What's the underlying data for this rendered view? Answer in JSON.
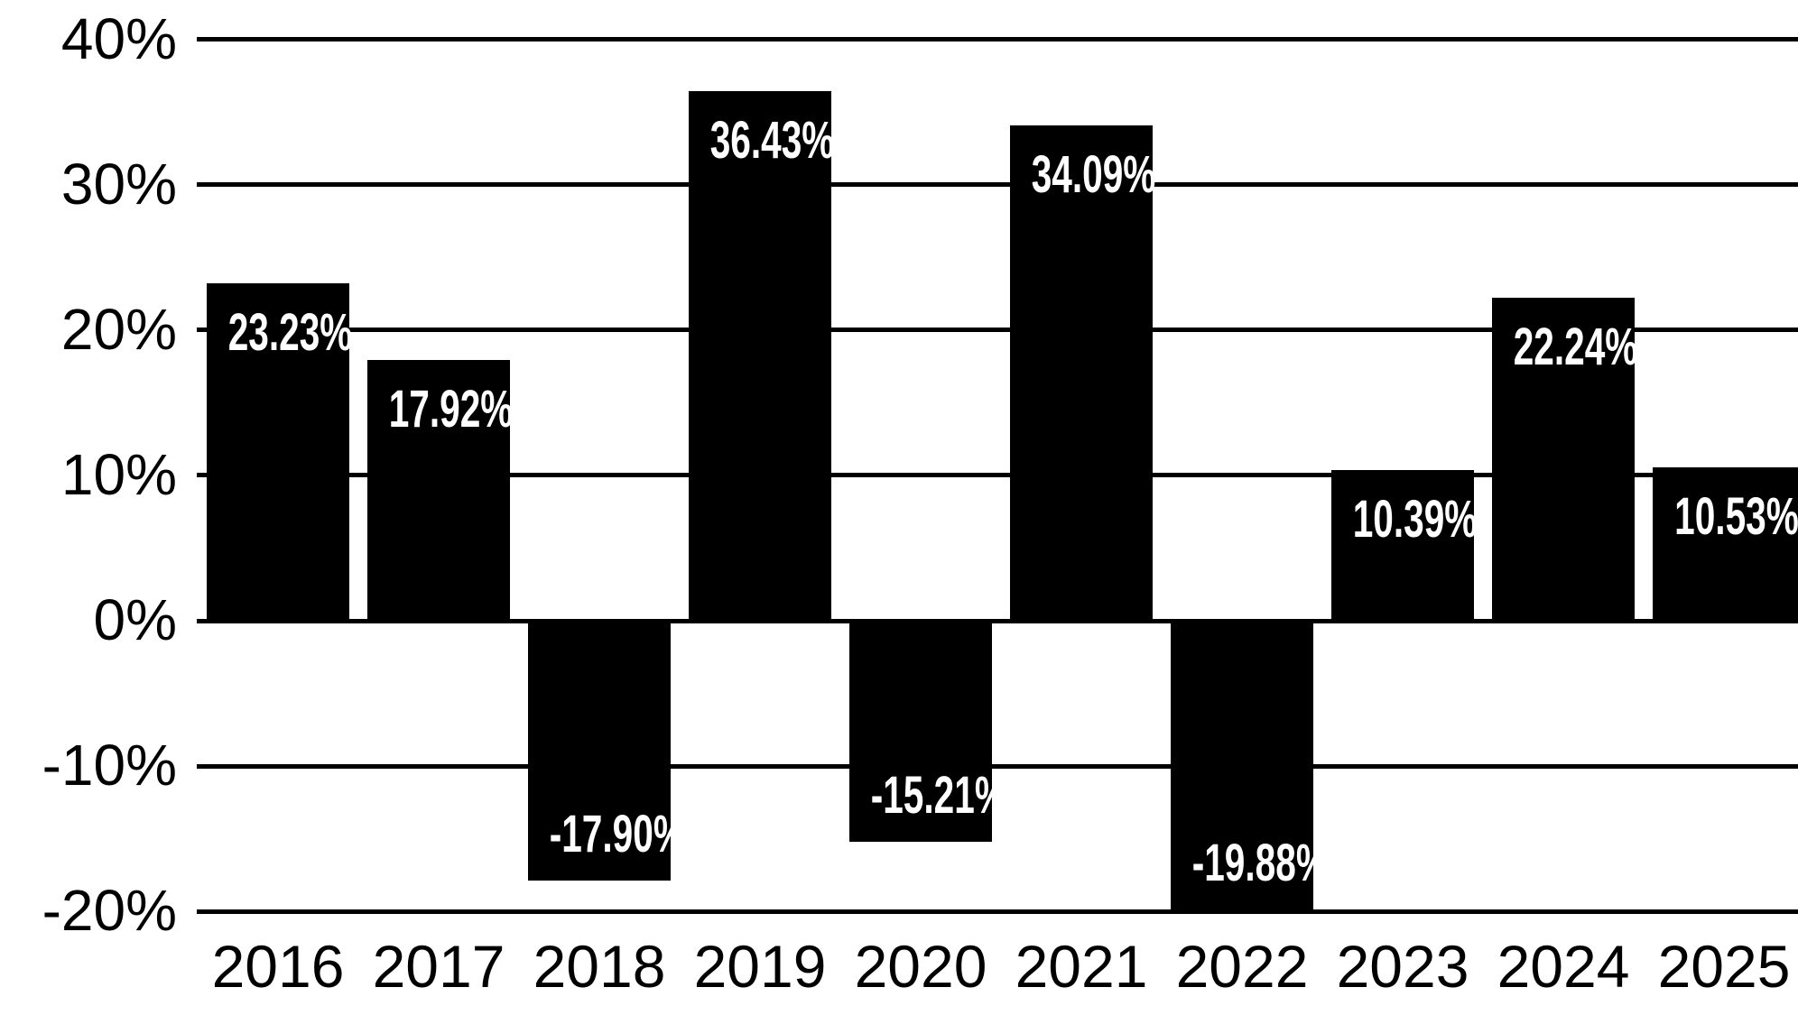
{
  "chart_data": {
    "type": "bar",
    "title": "",
    "xlabel": "",
    "ylabel": "",
    "categories": [
      "2016",
      "2017",
      "2018",
      "2019",
      "2020",
      "2021",
      "2022",
      "2023",
      "2024",
      "2025"
    ],
    "values": [
      23.23,
      17.92,
      -17.9,
      36.43,
      -15.21,
      34.09,
      -19.88,
      10.39,
      22.24,
      10.53
    ],
    "value_labels": [
      "23.23%",
      "17.92%",
      "-17.90%",
      "36.43%",
      "-15.21%",
      "34.09%",
      "-19.88%",
      "10.39%",
      "22.24%",
      "10.53%"
    ],
    "value_label_position": "inside-end",
    "y_axis": {
      "tick_labels": [
        "40%",
        "30%",
        "20%",
        "10%",
        "0%",
        "-10%",
        "-20%"
      ],
      "tick_values": [
        40,
        30,
        20,
        10,
        0,
        -10,
        -20
      ],
      "range_shown": [
        -27,
        43
      ]
    },
    "grid": true,
    "legend": false,
    "colors": {
      "bar": "#000000",
      "bar_label_text": "#ffffff",
      "axis_text": "#000000",
      "gridline": "#000000",
      "background": "#ffffff"
    }
  }
}
